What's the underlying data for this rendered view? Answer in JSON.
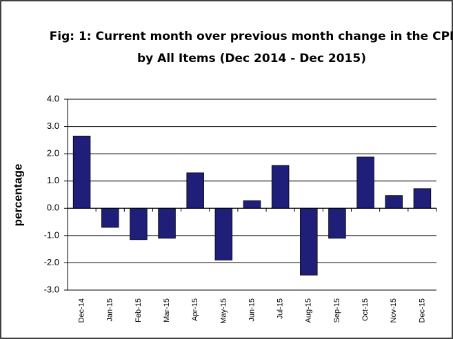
{
  "chart_data": {
    "type": "bar",
    "title": [
      "Fig: 1: Current  month over previous month change in the CPI",
      "by All Items (Dec 2014 - Dec 2015)"
    ],
    "y_label": "percentage",
    "categories": [
      "Dec-14",
      "Jan-15",
      "Feb-15",
      "Mar-15",
      "Apr-15",
      "May-15",
      "Jun-15",
      "Jul-15",
      "Aug-15",
      "Sep-15",
      "Oct-15",
      "Nov-15",
      "Dec-15"
    ],
    "values": [
      2.65,
      -0.7,
      -1.15,
      -1.1,
      1.3,
      -1.9,
      0.28,
      1.57,
      -2.45,
      -1.1,
      1.88,
      0.47,
      0.72
    ],
    "color": "#1f1f7a",
    "ylim": [
      -3,
      4
    ],
    "yticks": [
      {
        "value": -3,
        "label": "-3.0"
      },
      {
        "value": -2,
        "label": "-2.0"
      },
      {
        "value": -1,
        "label": "-1.0"
      },
      {
        "value": 0,
        "label": "0.0"
      },
      {
        "value": 1,
        "label": "1.0"
      },
      {
        "value": 2,
        "label": "2.0"
      },
      {
        "value": 3,
        "label": "3.0"
      },
      {
        "value": 4,
        "label": "4.0"
      }
    ],
    "grid": true
  }
}
